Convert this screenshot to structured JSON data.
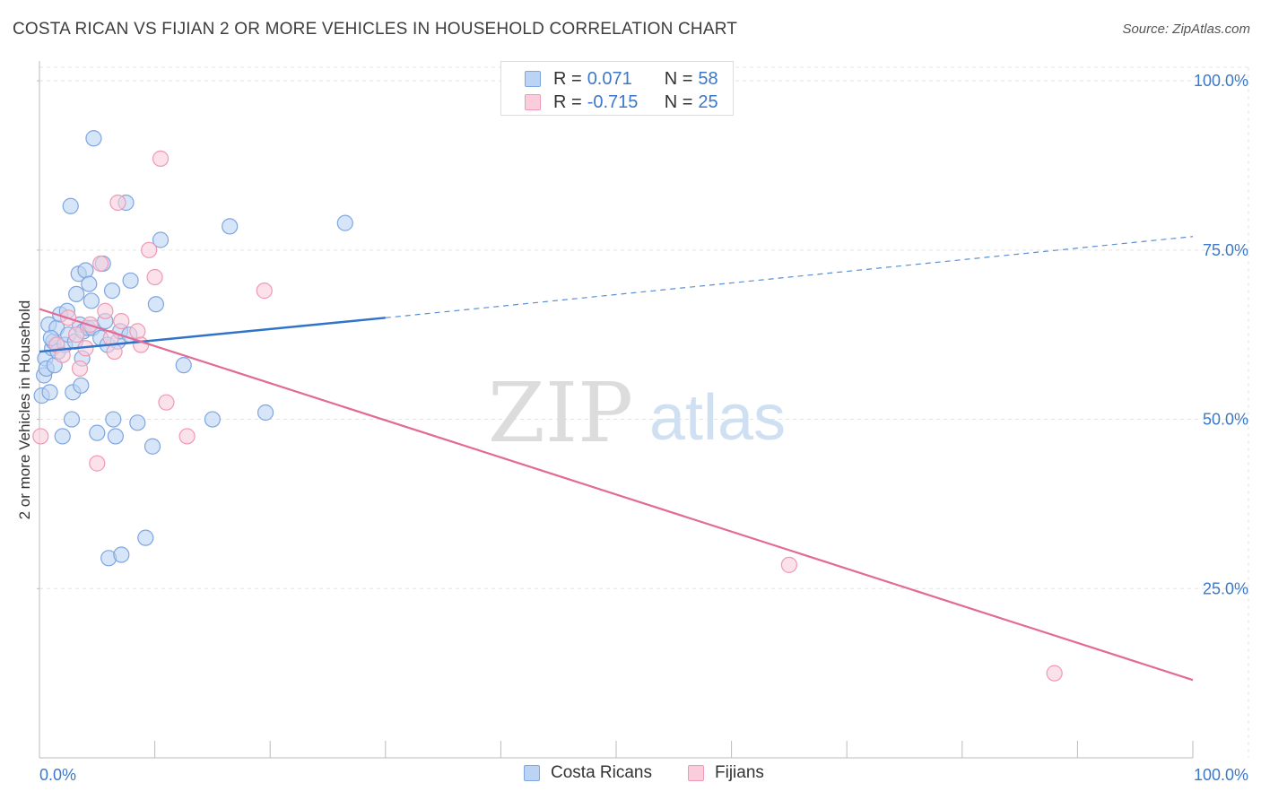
{
  "header": {
    "title": "COSTA RICAN VS FIJIAN 2 OR MORE VEHICLES IN HOUSEHOLD CORRELATION CHART",
    "source": "Source: ZipAtlas.com"
  },
  "colors": {
    "blue_fill": "#bcd4f4",
    "blue_stroke": "#7ea6e0",
    "blue_line": "#2f74c9",
    "pink_fill": "#f9cddb",
    "pink_stroke": "#ef9ab4",
    "pink_line": "#e26a96",
    "tick_label": "#3b78c8",
    "grid": "#e4e4e4"
  },
  "legend": {
    "rows": [
      {
        "r_label": "R =",
        "r_value": "0.071",
        "n_label": "N =",
        "n_value": "58"
      },
      {
        "r_label": "R =",
        "r_value": "-0.715",
        "n_label": "N =",
        "n_value": "25"
      }
    ]
  },
  "bottom_legend": {
    "items": [
      "Costa Ricans",
      "Fijians"
    ]
  },
  "watermark": {
    "zip": "ZIP",
    "atlas": "atlas"
  },
  "chart_data": {
    "type": "scatter",
    "title": "COSTA RICAN VS FIJIAN 2 OR MORE VEHICLES IN HOUSEHOLD CORRELATION CHART",
    "xlabel": "",
    "ylabel": "2 or more Vehicles in Household",
    "xlim": [
      0,
      100
    ],
    "ylim": [
      0,
      102
    ],
    "x_tick_labels": [
      "0.0%",
      "100.0%"
    ],
    "y_ticks": [
      25,
      50,
      75,
      100
    ],
    "y_tick_labels": [
      "25.0%",
      "50.0%",
      "75.0%",
      "100.0%"
    ],
    "grid": true,
    "series": [
      {
        "name": "Costa Ricans",
        "r": 0.071,
        "n": 58,
        "trend": {
          "x0": 0,
          "y0": 60.0,
          "x1": 30,
          "y1": 65.0,
          "dashed_to_x": 100,
          "dashed_to_y": 77.0
        },
        "points": [
          [
            0.2,
            53.5
          ],
          [
            0.4,
            56.5
          ],
          [
            0.5,
            59.0
          ],
          [
            0.6,
            57.5
          ],
          [
            0.8,
            64.0
          ],
          [
            0.9,
            54.0
          ],
          [
            1.1,
            60.5
          ],
          [
            1.2,
            61.5
          ],
          [
            1.3,
            58.0
          ],
          [
            1.5,
            63.5
          ],
          [
            1.6,
            60.0
          ],
          [
            1.8,
            65.5
          ],
          [
            2.0,
            47.5
          ],
          [
            2.2,
            61.0
          ],
          [
            2.4,
            66.0
          ],
          [
            2.5,
            62.5
          ],
          [
            2.7,
            81.5
          ],
          [
            2.8,
            50.0
          ],
          [
            2.9,
            54.0
          ],
          [
            3.1,
            61.5
          ],
          [
            3.2,
            68.5
          ],
          [
            3.4,
            71.5
          ],
          [
            3.5,
            64.0
          ],
          [
            3.6,
            55.0
          ],
          [
            3.7,
            59.0
          ],
          [
            3.8,
            63.0
          ],
          [
            4.0,
            72.0
          ],
          [
            4.2,
            63.5
          ],
          [
            4.3,
            70.0
          ],
          [
            4.5,
            67.5
          ],
          [
            4.6,
            63.5
          ],
          [
            4.7,
            91.5
          ],
          [
            5.0,
            48.0
          ],
          [
            5.3,
            62.0
          ],
          [
            5.5,
            73.0
          ],
          [
            5.7,
            64.5
          ],
          [
            5.9,
            61.0
          ],
          [
            6.0,
            29.5
          ],
          [
            6.3,
            69.0
          ],
          [
            6.4,
            50.0
          ],
          [
            6.6,
            47.5
          ],
          [
            6.8,
            61.5
          ],
          [
            7.0,
            63.0
          ],
          [
            7.1,
            30.0
          ],
          [
            7.5,
            82.0
          ],
          [
            7.8,
            62.5
          ],
          [
            7.9,
            70.5
          ],
          [
            8.5,
            49.5
          ],
          [
            9.2,
            32.5
          ],
          [
            9.8,
            46.0
          ],
          [
            10.1,
            67.0
          ],
          [
            10.5,
            76.5
          ],
          [
            12.5,
            58.0
          ],
          [
            15.0,
            50.0
          ],
          [
            16.5,
            78.5
          ],
          [
            19.6,
            51.0
          ],
          [
            26.5,
            79.0
          ],
          [
            1.0,
            62.0
          ]
        ]
      },
      {
        "name": "Fijians",
        "r": -0.715,
        "n": 25,
        "trend": {
          "x0": 0,
          "y0": 66.3,
          "x1": 100,
          "y1": 11.5
        },
        "points": [
          [
            0.1,
            47.5
          ],
          [
            1.5,
            61.0
          ],
          [
            2.0,
            59.5
          ],
          [
            2.5,
            65.0
          ],
          [
            3.2,
            62.5
          ],
          [
            3.5,
            57.5
          ],
          [
            4.0,
            60.5
          ],
          [
            4.4,
            64.0
          ],
          [
            5.0,
            43.5
          ],
          [
            5.3,
            73.0
          ],
          [
            5.7,
            66.0
          ],
          [
            6.2,
            62.0
          ],
          [
            6.5,
            60.0
          ],
          [
            6.8,
            82.0
          ],
          [
            7.1,
            64.5
          ],
          [
            8.5,
            63.0
          ],
          [
            8.8,
            61.0
          ],
          [
            9.5,
            75.0
          ],
          [
            10.0,
            71.0
          ],
          [
            10.5,
            88.5
          ],
          [
            11.0,
            52.5
          ],
          [
            12.8,
            47.5
          ],
          [
            19.5,
            69.0
          ],
          [
            65.0,
            28.5
          ],
          [
            88.0,
            12.5
          ]
        ]
      }
    ]
  }
}
